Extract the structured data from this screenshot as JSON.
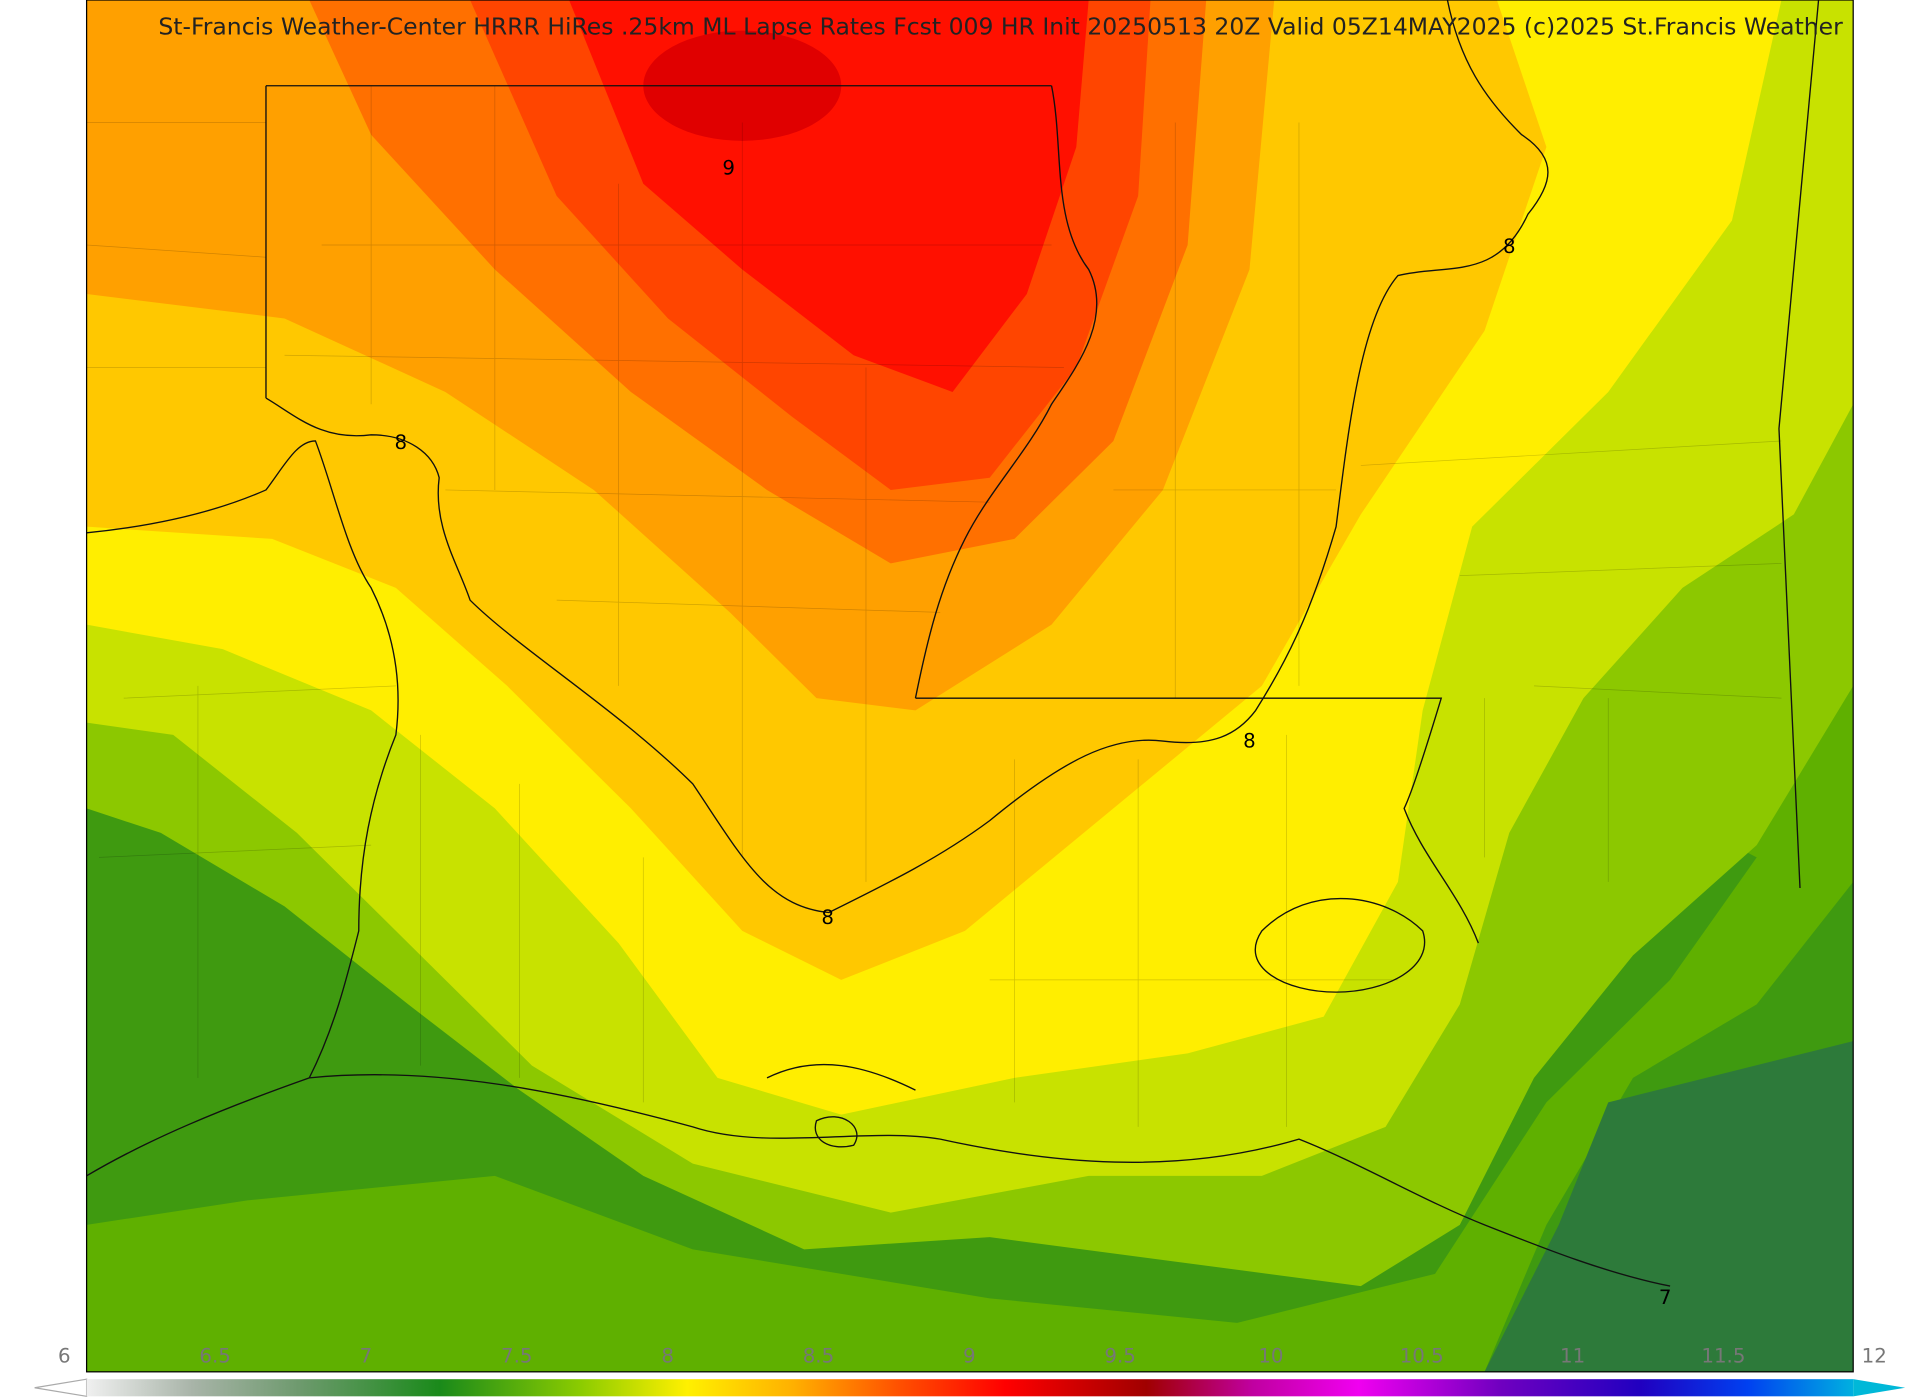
{
  "title": "St-Francis Weather-Center HRRR HiRes .25km ML Lapse Rates  Fcst 009 HR Init 20250513 20Z  Valid 05Z14MAY2025    (c)2025 St.Francis Weather",
  "contour_labels": [
    "9",
    "8",
    "8",
    "8",
    "8",
    "7"
  ],
  "colorbar": {
    "ticks": [
      6,
      6.5,
      7,
      7.5,
      8,
      8.5,
      9,
      9.5,
      10,
      10.5,
      11,
      11.5,
      12
    ]
  }
}
